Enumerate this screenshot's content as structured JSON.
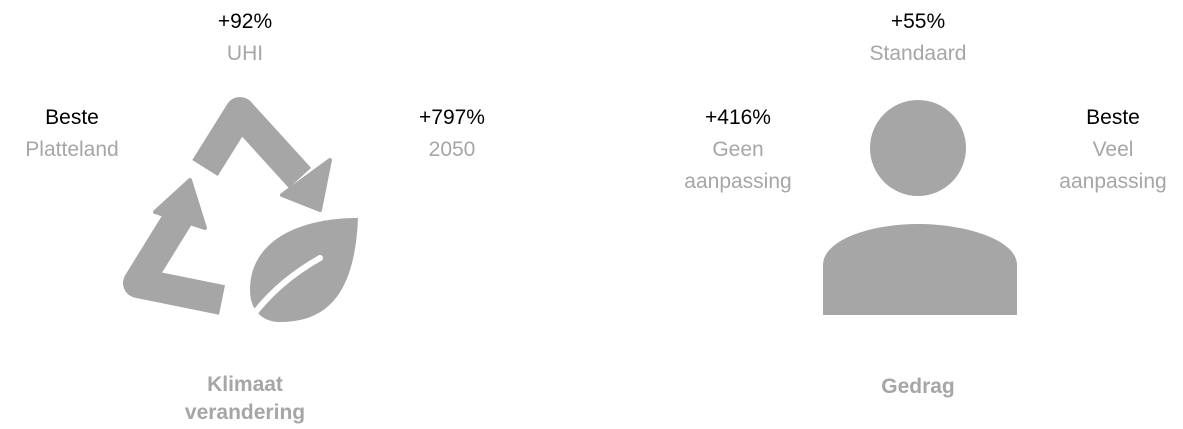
{
  "panels": [
    {
      "top": {
        "value": "+92%",
        "label": "UHI"
      },
      "left": {
        "value": "Beste",
        "label": "Platteland"
      },
      "right": {
        "value": "+797%",
        "label": "2050"
      },
      "title": "Klimaat verandering"
    },
    {
      "top": {
        "value": "+55%",
        "label": "Standaard"
      },
      "left": {
        "value": "+416%",
        "label": "Geen aanpassing"
      },
      "right": {
        "value": "Beste",
        "label": "Veel aanpassing"
      },
      "title": "Gedrag"
    }
  ]
}
